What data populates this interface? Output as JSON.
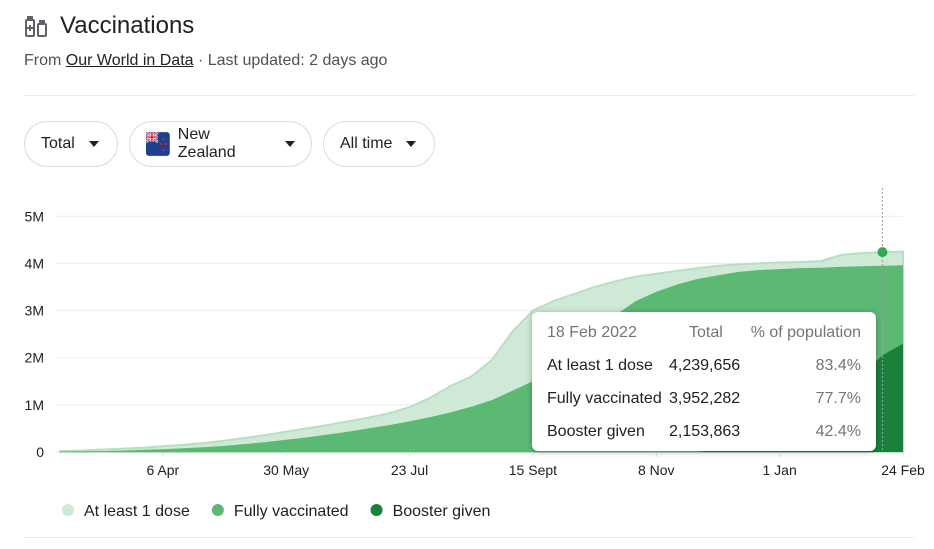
{
  "header": {
    "title": "Vaccinations",
    "source_prefix": "From",
    "source_link": "Our World in Data",
    "updated": "· Last updated: 2 days ago"
  },
  "filters": [
    "Total",
    "New Zealand",
    "All time"
  ],
  "chart_data": {
    "type": "area",
    "categories": [
      null,
      null,
      null,
      null,
      null,
      "6 Apr",
      null,
      null,
      null,
      null,
      null,
      "30 May",
      null,
      null,
      null,
      null,
      null,
      "23 Jul",
      null,
      null,
      null,
      null,
      null,
      "15 Sept",
      null,
      null,
      null,
      null,
      null,
      "8 Nov",
      null,
      null,
      null,
      null,
      null,
      "1 Jan",
      null,
      null,
      null,
      null,
      null,
      "24 Feb"
    ],
    "series": [
      {
        "name": "At least 1 dose",
        "color": "#ceead6",
        "values": [
          20000,
          30000,
          50000,
          70000,
          90000,
          120000,
          150000,
          190000,
          240000,
          300000,
          360000,
          430000,
          500000,
          570000,
          650000,
          730000,
          820000,
          950000,
          1150000,
          1400000,
          1600000,
          1950000,
          2550000,
          3000000,
          3200000,
          3350000,
          3500000,
          3620000,
          3720000,
          3780000,
          3840000,
          3900000,
          3950000,
          3980000,
          4000000,
          4020000,
          4030000,
          4050000,
          4180000,
          4220000,
          4240000,
          4250000
        ]
      },
      {
        "name": "Fully vaccinated",
        "color": "#5bb974",
        "values": [
          10000,
          15000,
          20000,
          30000,
          45000,
          60000,
          80000,
          100000,
          130000,
          170000,
          210000,
          260000,
          310000,
          370000,
          430000,
          500000,
          570000,
          650000,
          740000,
          840000,
          960000,
          1100000,
          1300000,
          1500000,
          1750000,
          2100000,
          2500000,
          2900000,
          3200000,
          3400000,
          3550000,
          3670000,
          3750000,
          3820000,
          3860000,
          3880000,
          3900000,
          3910000,
          3930000,
          3940000,
          3950000,
          3960000
        ]
      },
      {
        "name": "Booster given",
        "color": "#188038",
        "values": [
          0,
          0,
          0,
          0,
          0,
          0,
          0,
          0,
          0,
          0,
          0,
          0,
          0,
          0,
          0,
          0,
          0,
          0,
          0,
          0,
          0,
          0,
          0,
          0,
          0,
          0,
          0,
          0,
          0,
          0,
          0,
          0,
          50000,
          100000,
          180000,
          300000,
          500000,
          800000,
          1200000,
          1650000,
          2050000,
          2300000
        ]
      }
    ],
    "ylim": [
      0,
      5600000
    ],
    "yticks": [
      {
        "value": 0,
        "label": "0"
      },
      {
        "value": 1000000,
        "label": "1M"
      },
      {
        "value": 2000000,
        "label": "2M"
      },
      {
        "value": 3000000,
        "label": "3M"
      },
      {
        "value": 4000000,
        "label": "4M"
      },
      {
        "value": 5000000,
        "label": "5M"
      }
    ],
    "grid": true,
    "tooltip": {
      "date": "18 Feb 2022",
      "headers": [
        "Total",
        "% of population"
      ],
      "rows": [
        {
          "total": "4,239,656",
          "percent": "83.4%"
        },
        {
          "total": "3,952,282",
          "percent": "77.7%"
        },
        {
          "total": "2,153,863",
          "percent": "42.4%"
        }
      ]
    }
  }
}
